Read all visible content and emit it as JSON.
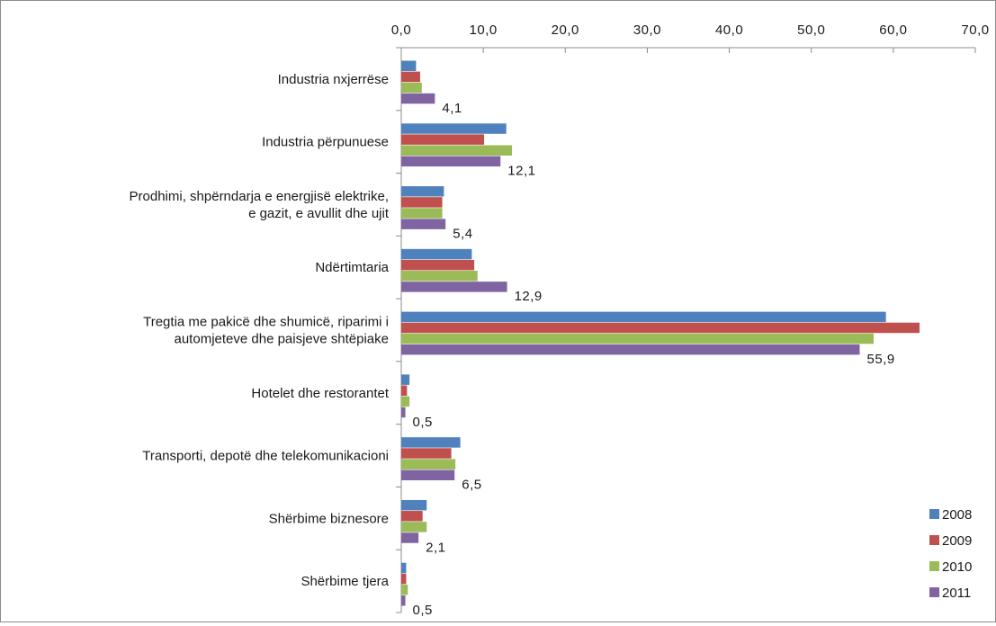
{
  "chart_data": {
    "type": "bar",
    "orientation": "horizontal",
    "xlim": [
      0,
      70
    ],
    "x_ticks": [
      "0,0",
      "10,0",
      "20,0",
      "30,0",
      "40,0",
      "50,0",
      "60,0",
      "70,0"
    ],
    "x_axis_position": "top",
    "grid": false,
    "legend_position": "bottom-right",
    "categories": [
      [
        "Industria nxjerrëse"
      ],
      [
        "Industria përpunuese"
      ],
      [
        "Prodhimi, shpërndarja e energjisë elektrike,",
        "e gazit, e avullit dhe ujit"
      ],
      [
        "Ndërtimtaria"
      ],
      [
        "Tregtia me pakicë dhe shumicë, riparimi i",
        "automjeteve dhe paisjeve shtëpiake"
      ],
      [
        "Hotelet dhe restorantet"
      ],
      [
        "Transporti, depotë dhe telekomunikacioni"
      ],
      [
        "Shërbime biznesore"
      ],
      [
        "Shërbime tjera"
      ]
    ],
    "series": [
      {
        "name": "2008",
        "color": "#4f81bd",
        "values": [
          1.8,
          12.8,
          5.2,
          8.6,
          59.1,
          1.0,
          7.2,
          3.1,
          0.6
        ]
      },
      {
        "name": "2009",
        "color": "#c0504d",
        "values": [
          2.3,
          10.1,
          5.0,
          8.9,
          63.2,
          0.7,
          6.1,
          2.6,
          0.6
        ]
      },
      {
        "name": "2010",
        "color": "#9bbb59",
        "values": [
          2.5,
          13.5,
          5.0,
          9.3,
          57.6,
          1.0,
          6.6,
          3.1,
          0.8
        ]
      },
      {
        "name": "2011",
        "color": "#8064a2",
        "values": [
          4.1,
          12.1,
          5.4,
          12.9,
          55.9,
          0.5,
          6.5,
          2.1,
          0.5
        ]
      }
    ],
    "data_labels": {
      "series": "2011",
      "values": [
        "4,1",
        "12,1",
        "5,4",
        "12,9",
        "55,9",
        "0,5",
        "6,5",
        "2,1",
        "0,5"
      ]
    }
  }
}
